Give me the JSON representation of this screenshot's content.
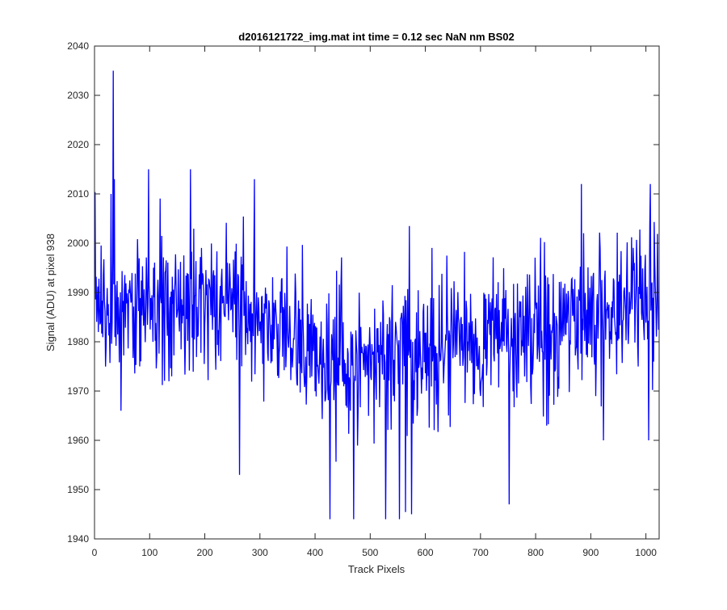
{
  "chart_data": {
    "type": "line",
    "title": "d2016121722_img.mat int time = 0.12 sec  NaN nm BS02",
    "xlabel": "Track Pixels",
    "ylabel": "Signal (ADU) at pixel 938",
    "xlim": [
      0,
      1024
    ],
    "ylim": [
      1940,
      2040
    ],
    "xticks": [
      0,
      100,
      200,
      300,
      400,
      500,
      600,
      700,
      800,
      900,
      1000
    ],
    "yticks": [
      1940,
      1950,
      1960,
      1970,
      1980,
      1990,
      2000,
      2010,
      2020,
      2030,
      2040
    ],
    "xtick_labels": [
      "0",
      "100",
      "200",
      "300",
      "400",
      "500",
      "600",
      "700",
      "800",
      "900",
      "1000"
    ],
    "ytick_labels": [
      "1940",
      "1950",
      "1960",
      "1970",
      "1980",
      "1990",
      "2000",
      "2010",
      "2020",
      "2030",
      "2040"
    ],
    "grid": false,
    "series": [
      {
        "name": "signal",
        "color": "#0000ff",
        "x_start": 1,
        "x_step": 1,
        "trend_knots": [
          [
            0,
            1988
          ],
          [
            100,
            1987
          ],
          [
            200,
            1988
          ],
          [
            300,
            1985
          ],
          [
            400,
            1977
          ],
          [
            500,
            1976
          ],
          [
            600,
            1978
          ],
          [
            700,
            1982
          ],
          [
            800,
            1983
          ],
          [
            900,
            1986
          ],
          [
            1000,
            1988
          ],
          [
            1024,
            1989
          ]
        ],
        "noise_amplitude": 7,
        "noise_seed": 938,
        "spikes": [
          [
            34,
            2035
          ],
          [
            36,
            2013
          ],
          [
            30,
            2010
          ],
          [
            98,
            2015
          ],
          [
            174,
            2015
          ],
          [
            290,
            2013
          ],
          [
            1008,
            2012
          ],
          [
            883,
            2012
          ],
          [
            263,
            1953
          ],
          [
            48,
            1966
          ],
          [
            427,
            1944
          ],
          [
            470,
            1944
          ],
          [
            528,
            1944
          ],
          [
            553,
            1944
          ],
          [
            575,
            1945
          ],
          [
            752,
            1947
          ],
          [
            1005,
            1960
          ],
          [
            923,
            1960
          ],
          [
            820,
            1963
          ]
        ]
      }
    ]
  }
}
